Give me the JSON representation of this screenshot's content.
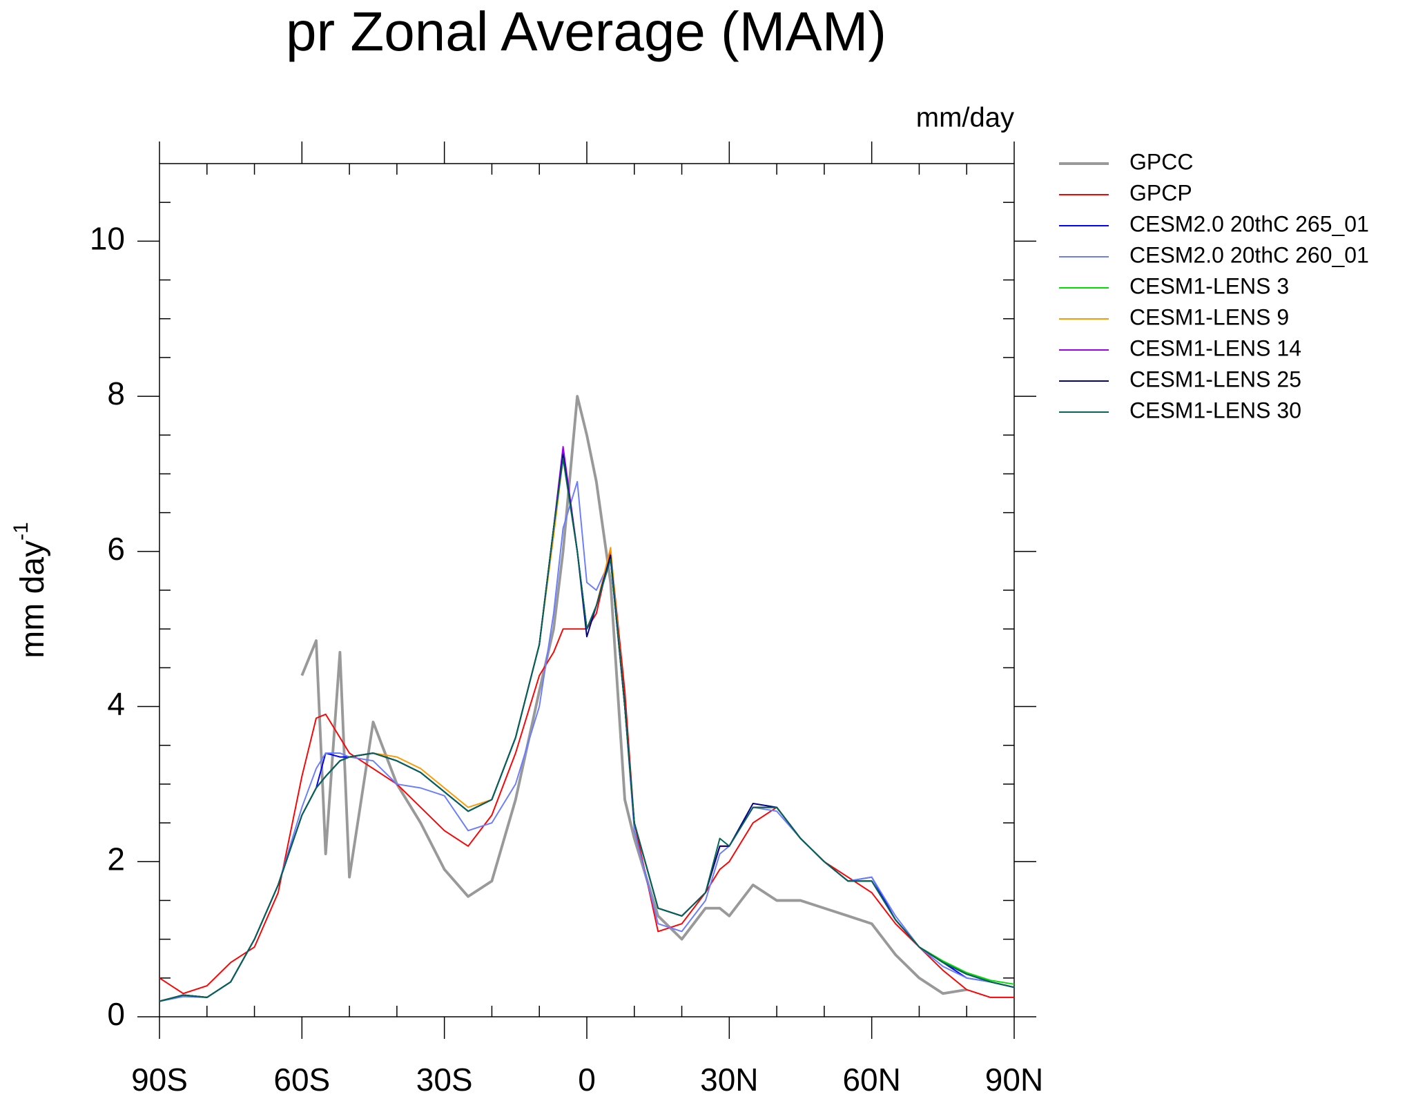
{
  "chart_data": {
    "type": "line",
    "title": "pr Zonal Average (MAM)",
    "units_label": "mm/day",
    "y_label": "mm day",
    "y_label_sup": "-1",
    "xlim": [
      -90,
      90
    ],
    "ylim": [
      0,
      11
    ],
    "xticks": [
      {
        "value": -90,
        "label": "90S"
      },
      {
        "value": -60,
        "label": "60S"
      },
      {
        "value": -30,
        "label": "30S"
      },
      0,
      {
        "value": 30,
        "label": "30N"
      },
      {
        "value": 60,
        "label": "60N"
      },
      {
        "value": 90,
        "label": "90N"
      }
    ],
    "yticks": [
      0,
      2,
      4,
      6,
      8,
      10
    ],
    "xminorticks": [
      -80,
      -70,
      -50,
      -40,
      -20,
      -10,
      10,
      20,
      40,
      50,
      70,
      80
    ],
    "yminorticks": [
      0.5,
      1,
      1.5,
      2.5,
      3,
      3.5,
      4.5,
      5,
      5.5,
      6.5,
      7,
      7.5,
      8.5,
      9,
      9.5,
      10.5
    ],
    "x": [
      -90,
      -85,
      -80,
      -75,
      -70,
      -65,
      -60,
      -57,
      -55,
      -52,
      -50,
      -45,
      -40,
      -35,
      -30,
      -25,
      -20,
      -15,
      -10,
      -7,
      -5,
      -2,
      0,
      2,
      5,
      8,
      10,
      15,
      20,
      25,
      28,
      30,
      35,
      40,
      45,
      50,
      55,
      60,
      65,
      70,
      75,
      80,
      85,
      90
    ],
    "series": [
      {
        "name": "GPCC",
        "color": "#999999",
        "width": 3,
        "values": [
          null,
          null,
          null,
          null,
          null,
          null,
          4.4,
          4.85,
          2.1,
          4.7,
          1.8,
          3.8,
          3.0,
          2.5,
          1.9,
          1.55,
          1.75,
          2.8,
          4.2,
          5.0,
          6.0,
          8.0,
          7.5,
          6.9,
          5.6,
          2.8,
          2.3,
          1.3,
          1.0,
          1.4,
          1.4,
          1.3,
          1.7,
          1.5,
          1.5,
          1.4,
          1.3,
          1.2,
          0.8,
          0.5,
          0.3,
          0.35,
          null,
          null
        ]
      },
      {
        "name": "GPCP",
        "color": "#ff0000",
        "width": 1.5,
        "values": [
          0.5,
          0.3,
          0.4,
          0.7,
          0.9,
          1.6,
          3.1,
          3.85,
          3.9,
          3.6,
          3.4,
          3.2,
          3.0,
          2.7,
          2.4,
          2.2,
          2.6,
          3.4,
          4.4,
          4.7,
          5.0,
          5.0,
          5.0,
          5.2,
          6.0,
          4.2,
          2.5,
          1.1,
          1.2,
          1.6,
          1.9,
          2.0,
          2.5,
          2.7,
          2.3,
          2.0,
          1.8,
          1.6,
          1.2,
          0.9,
          0.6,
          0.35,
          0.25,
          0.25
        ]
      },
      {
        "name": "CESM2.0 20thC 265_01",
        "color": "#0000ff",
        "width": 1.5,
        "values": [
          0.2,
          0.28,
          0.25,
          0.45,
          1.0,
          1.7,
          2.6,
          2.95,
          3.4,
          3.35,
          3.35,
          3.4,
          3.3,
          3.15,
          2.9,
          2.65,
          2.8,
          3.6,
          4.8,
          6.3,
          7.3,
          6.0,
          5.0,
          5.3,
          5.9,
          4.0,
          2.5,
          1.4,
          1.3,
          1.6,
          2.2,
          2.2,
          2.7,
          2.7,
          2.3,
          2.0,
          1.75,
          1.8,
          1.25,
          0.9,
          0.7,
          0.5,
          0.45,
          0.38
        ]
      },
      {
        "name": "CESM2.0 20thC 260_01",
        "color": "#6a7cff",
        "width": 1.5,
        "values": [
          0.2,
          0.26,
          0.25,
          0.45,
          1.0,
          1.7,
          2.7,
          3.2,
          3.4,
          3.4,
          3.35,
          3.3,
          3.0,
          2.95,
          2.85,
          2.4,
          2.5,
          3.0,
          4.0,
          5.2,
          6.3,
          6.9,
          5.6,
          5.5,
          5.9,
          4.0,
          2.4,
          1.2,
          1.1,
          1.5,
          2.1,
          2.2,
          2.7,
          2.65,
          2.3,
          2.0,
          1.75,
          1.8,
          1.3,
          0.9,
          0.65,
          0.5,
          0.45,
          0.38
        ]
      },
      {
        "name": "CESM1-LENS 3",
        "color": "#00dd00",
        "width": 1.5,
        "values": [
          0.2,
          0.28,
          0.25,
          0.45,
          1.0,
          1.7,
          2.6,
          2.95,
          3.1,
          3.3,
          3.35,
          3.4,
          3.3,
          3.15,
          2.9,
          2.65,
          2.8,
          3.6,
          4.8,
          6.3,
          7.2,
          6.0,
          5.0,
          5.3,
          5.95,
          4.0,
          2.5,
          1.4,
          1.3,
          1.6,
          2.2,
          2.2,
          2.7,
          2.7,
          2.3,
          2.0,
          1.75,
          1.75,
          1.25,
          0.9,
          0.72,
          0.57,
          0.47,
          0.42
        ]
      },
      {
        "name": "CESM1-LENS 9",
        "color": "#ff9900",
        "width": 1.5,
        "values": [
          0.2,
          0.28,
          0.25,
          0.45,
          1.0,
          1.7,
          2.6,
          2.95,
          3.1,
          3.3,
          3.35,
          3.4,
          3.35,
          3.2,
          2.95,
          2.7,
          2.8,
          3.6,
          4.8,
          6.2,
          7.2,
          6.0,
          5.0,
          5.3,
          6.05,
          4.0,
          2.5,
          1.4,
          1.3,
          1.6,
          2.2,
          2.2,
          2.7,
          2.7,
          2.3,
          2.0,
          1.75,
          1.75,
          1.25,
          0.9,
          0.7,
          0.55,
          0.45,
          0.38
        ]
      },
      {
        "name": "CESM1-LENS 14",
        "color": "#9900ee",
        "width": 1.5,
        "values": [
          0.2,
          0.28,
          0.25,
          0.45,
          1.0,
          1.7,
          2.6,
          2.95,
          3.1,
          3.3,
          3.35,
          3.4,
          3.3,
          3.15,
          2.9,
          2.65,
          2.8,
          3.6,
          4.8,
          6.3,
          7.35,
          6.0,
          5.0,
          5.3,
          5.9,
          4.0,
          2.5,
          1.4,
          1.3,
          1.6,
          2.2,
          2.2,
          2.7,
          2.7,
          2.3,
          2.0,
          1.75,
          1.75,
          1.25,
          0.9,
          0.7,
          0.55,
          0.45,
          0.38
        ]
      },
      {
        "name": "CESM1-LENS 25",
        "color": "#00008b",
        "width": 1.5,
        "values": [
          0.2,
          0.28,
          0.25,
          0.45,
          1.0,
          1.7,
          2.6,
          2.95,
          3.1,
          3.3,
          3.35,
          3.4,
          3.3,
          3.15,
          2.9,
          2.65,
          2.8,
          3.6,
          4.8,
          6.3,
          7.25,
          6.0,
          4.9,
          5.3,
          5.95,
          4.0,
          2.5,
          1.4,
          1.3,
          1.6,
          2.2,
          2.2,
          2.75,
          2.7,
          2.3,
          2.0,
          1.75,
          1.75,
          1.25,
          0.9,
          0.7,
          0.55,
          0.45,
          0.38
        ]
      },
      {
        "name": "CESM1-LENS 30",
        "color": "#006655",
        "width": 1.5,
        "values": [
          0.2,
          0.28,
          0.25,
          0.45,
          1.0,
          1.7,
          2.6,
          2.95,
          3.1,
          3.3,
          3.35,
          3.4,
          3.3,
          3.15,
          2.9,
          2.65,
          2.8,
          3.6,
          4.8,
          6.3,
          7.2,
          6.0,
          5.0,
          5.3,
          5.9,
          4.0,
          2.5,
          1.4,
          1.3,
          1.6,
          2.3,
          2.2,
          2.7,
          2.7,
          2.3,
          2.0,
          1.75,
          1.75,
          1.25,
          0.9,
          0.7,
          0.55,
          0.45,
          0.38
        ]
      }
    ]
  }
}
